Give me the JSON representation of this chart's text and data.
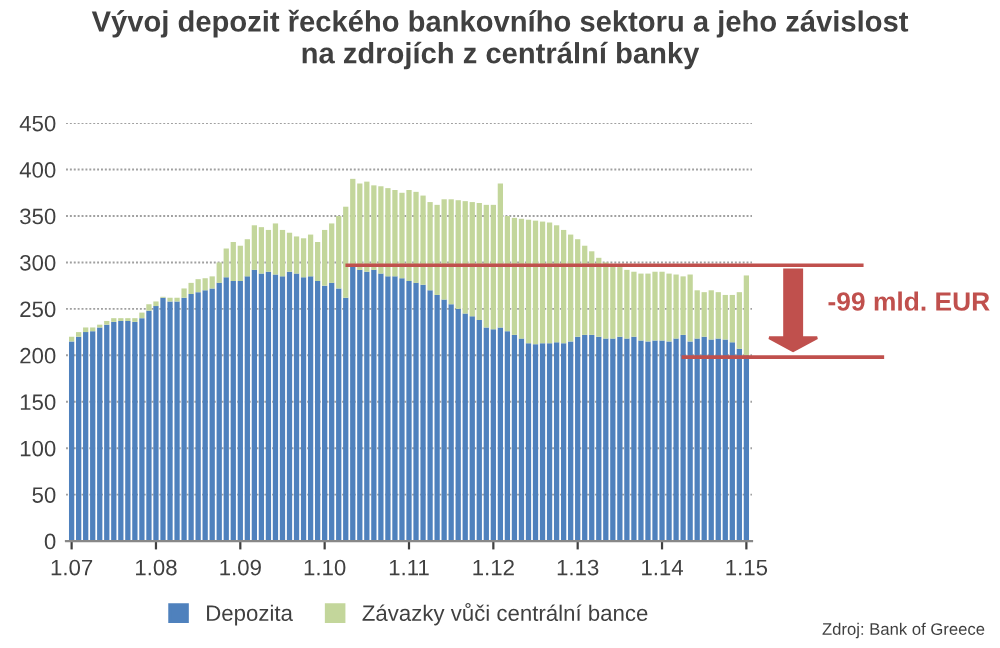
{
  "chart_data": {
    "type": "bar",
    "stacked": true,
    "title": "Vývoj depozit řeckého bankovního sektoru a jeho závislost\nna zdrojích z centrální banky",
    "categories": [
      "1.07",
      null,
      null,
      null,
      null,
      null,
      null,
      null,
      null,
      null,
      null,
      null,
      "1.08",
      null,
      null,
      null,
      null,
      null,
      null,
      null,
      null,
      null,
      null,
      null,
      "1.09",
      null,
      null,
      null,
      null,
      null,
      null,
      null,
      null,
      null,
      null,
      null,
      "1.10",
      null,
      null,
      null,
      null,
      null,
      null,
      null,
      null,
      null,
      null,
      null,
      "1.11",
      null,
      null,
      null,
      null,
      null,
      null,
      null,
      null,
      null,
      null,
      null,
      "1.12",
      null,
      null,
      null,
      null,
      null,
      null,
      null,
      null,
      null,
      null,
      null,
      "1.13",
      null,
      null,
      null,
      null,
      null,
      null,
      null,
      null,
      null,
      null,
      null,
      "1.14",
      null,
      null,
      null,
      null,
      null,
      null,
      null,
      null,
      null,
      null,
      null,
      "1.15"
    ],
    "series": [
      {
        "name": "Depozita",
        "color": "#4f81bd",
        "values": [
          215,
          220,
          225,
          226,
          230,
          233,
          236,
          237,
          237,
          236,
          240,
          248,
          253,
          262,
          258,
          258,
          262,
          266,
          268,
          270,
          272,
          278,
          284,
          280,
          280,
          285,
          292,
          288,
          290,
          287,
          285,
          290,
          288,
          284,
          285,
          280,
          275,
          278,
          272,
          262,
          297,
          292,
          290,
          292,
          288,
          285,
          285,
          283,
          280,
          278,
          276,
          270,
          265,
          260,
          255,
          250,
          245,
          242,
          238,
          230,
          228,
          230,
          226,
          222,
          218,
          213,
          212,
          213,
          213,
          214,
          213,
          215,
          220,
          222,
          222,
          220,
          218,
          218,
          220,
          218,
          220,
          216,
          215,
          216,
          216,
          215,
          218,
          222,
          215,
          218,
          220,
          217,
          218,
          217,
          214,
          207,
          200
        ]
      },
      {
        "name": "Závazky vůči centrální bance",
        "color": "#c3d69b",
        "values": [
          5,
          5,
          5,
          4,
          3,
          4,
          4,
          3,
          3,
          4,
          6,
          7,
          5,
          1,
          4,
          4,
          10,
          12,
          14,
          13,
          13,
          22,
          31,
          42,
          38,
          40,
          48,
          50,
          45,
          55,
          50,
          42,
          40,
          42,
          45,
          42,
          60,
          64,
          78,
          98,
          93,
          93,
          97,
          91,
          94,
          95,
          93,
          92,
          98,
          98,
          96,
          95,
          97,
          108,
          113,
          117,
          121,
          123,
          126,
          132,
          134,
          155,
          124,
          126,
          129,
          133,
          133,
          131,
          130,
          126,
          122,
          115,
          105,
          96,
          90,
          85,
          82,
          80,
          75,
          74,
          70,
          72,
          73,
          74,
          74,
          73,
          69,
          63,
          72,
          52,
          48,
          53,
          50,
          48,
          51,
          61,
          86
        ]
      }
    ],
    "ylim": [
      0,
      450
    ],
    "yticks": [
      0,
      50,
      100,
      150,
      200,
      250,
      300,
      350,
      400,
      450
    ],
    "grid": "y",
    "legend": "bottom",
    "ref_lines": [
      {
        "axis": "y",
        "value": 297,
        "color": "#c0504d"
      },
      {
        "axis": "y",
        "value": 198,
        "color": "#c0504d"
      }
    ],
    "annotations": [
      "-99 mld. EUR",
      "Zdroj: Bank of Greece"
    ]
  }
}
